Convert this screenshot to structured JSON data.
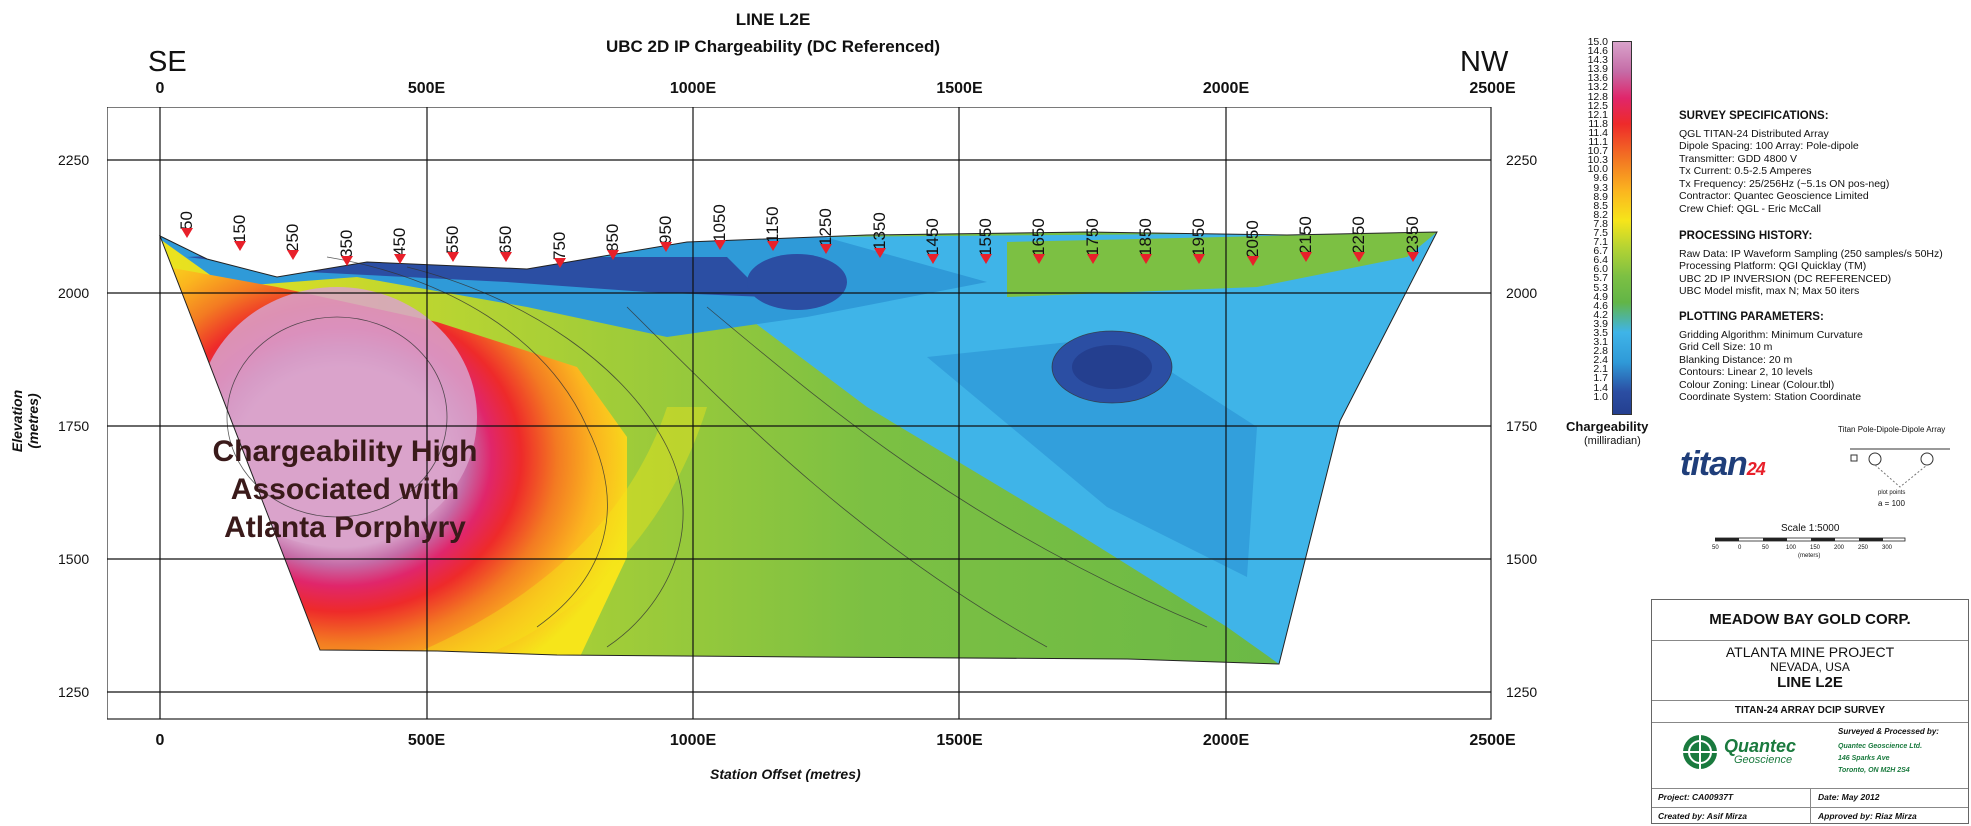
{
  "header": {
    "title": "LINE L2E",
    "subtitle": "UBC 2D IP Chargeability (DC Referenced)",
    "left_direction": "SE",
    "right_direction": "NW"
  },
  "x_axis": {
    "label": "Station Offset (metres)",
    "top_ticks": [
      "0",
      "500E",
      "1000E",
      "1500E",
      "2000E",
      "2500E"
    ],
    "bottom_ticks": [
      "0",
      "500E",
      "1000E",
      "1500E",
      "2000E",
      "2500E"
    ],
    "range": [
      0,
      2500
    ]
  },
  "y_axis": {
    "label": "Elevation (metres)",
    "ticks": [
      "2250",
      "2000",
      "1750",
      "1500",
      "1250"
    ],
    "range": [
      1200,
      2350
    ]
  },
  "stations": [
    "50",
    "150",
    "250",
    "350",
    "450",
    "550",
    "650",
    "750",
    "850",
    "950",
    "1050",
    "1150",
    "1250",
    "1350",
    "1450",
    "1550",
    "1650",
    "1750",
    "1850",
    "1950",
    "2050",
    "2150",
    "2250",
    "2350"
  ],
  "annotation": {
    "lines": [
      "Chargeability High",
      "Associated with",
      "Atlanta Porphyry"
    ]
  },
  "colorbar": {
    "title": "Chargeability",
    "units": "(milliradian)",
    "labels": [
      "15.0",
      "14.6",
      "14.3",
      "13.9",
      "13.6",
      "13.2",
      "12.8",
      "12.5",
      "12.1",
      "11.8",
      "11.4",
      "11.1",
      "10.7",
      "10.3",
      "10.0",
      "9.6",
      "9.3",
      "8.9",
      "8.5",
      "8.2",
      "7.8",
      "7.5",
      "7.1",
      "6.7",
      "6.4",
      "6.0",
      "5.7",
      "5.3",
      "4.9",
      "4.6",
      "4.2",
      "3.9",
      "3.5",
      "3.1",
      "2.8",
      "2.4",
      "2.1",
      "1.7",
      "1.4",
      "1.0"
    ]
  },
  "survey_specs": {
    "heading": "SURVEY SPECIFICATIONS:",
    "lines": [
      "QGL TITAN-24 Distributed Array",
      "Dipole Spacing: 100  Array: Pole-dipole",
      "Transmitter: GDD 4800 V",
      "Tx Current: 0.5-2.5 Amperes",
      "Tx Frequency: 25/256Hz (~5.1s ON pos-neg)",
      "Contractor: Quantec Geoscience Limited",
      "Crew Chief: QGL - Eric McCall"
    ]
  },
  "processing_history": {
    "heading": "PROCESSING HISTORY:",
    "lines": [
      "Raw Data: IP Waveform Sampling (250 samples/s  50Hz)",
      "Processing Platform: QGI Quicklay (TM)",
      "UBC 2D IP INVERSION (DC REFERENCED)",
      "UBC Model misfit, max N; Max 50 iters"
    ]
  },
  "plotting_parameters": {
    "heading": "PLOTTING PARAMETERS:",
    "lines": [
      "Gridding Algorithm: Minimum Curvature",
      "Grid Cell Size: 10 m",
      "Blanking Distance: 20 m",
      "Contours: Linear 2, 10 levels",
      "Colour Zoning: Linear (Colour.tbl)",
      "Coordinate System: Station Coordinate"
    ]
  },
  "logo": {
    "text": "titan",
    "suffix": "24"
  },
  "array_diagram": {
    "title": "Titan Pole-Dipole-Dipole Array",
    "spacing_label": "a = 100",
    "plot_point_label": "plot points"
  },
  "scale": {
    "label": "Scale 1:5000",
    "ticks": [
      "50",
      "0",
      "50",
      "100",
      "150",
      "200",
      "250",
      "300"
    ],
    "units": "(meters)"
  },
  "title_block": {
    "company": "MEADOW BAY GOLD CORP.",
    "project": "ATLANTA MINE PROJECT",
    "location": "NEVADA, USA",
    "line": "LINE L2E",
    "survey": "TITAN-24 ARRAY DCIP SURVEY",
    "surveyed_heading": "Surveyed & Processed by:",
    "processor_lines": [
      "Quantec Geoscience Ltd.",
      "146 Sparks Ave",
      "Toronto, ON M2H 2S4"
    ],
    "quantec_logo": "Quantec",
    "quantec_logo_sub": "Geoscience",
    "project_no": "Project: CA00937T",
    "date": "Date: May 2012",
    "created_by": "Created by: Asif Mirza",
    "approved_by": "Approved by: Riaz Mirza"
  },
  "colors": {
    "background": "#ffffff",
    "station_marker": "#e8202a",
    "high_zone": "#d9a3cb",
    "low_zone": "#2b4ea3"
  }
}
